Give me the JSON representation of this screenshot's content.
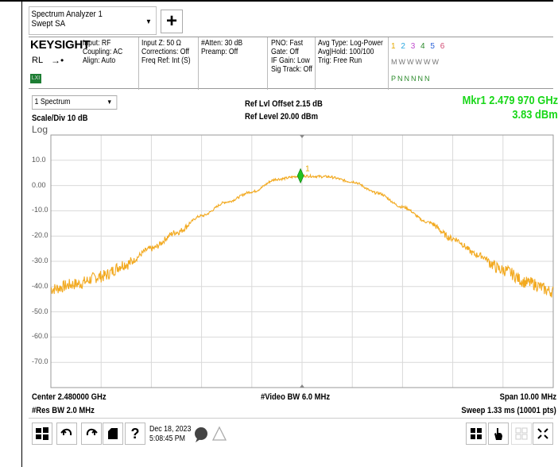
{
  "screen": {
    "selector_line1": "Spectrum Analyzer 1",
    "selector_line2": "Swept SA",
    "add_label": "+"
  },
  "settings": {
    "logo": "KEYSIGHT",
    "rl": "RL",
    "input": [
      "Input: RF",
      "Coupling: AC",
      "Align: Auto"
    ],
    "input_z": [
      "Input Z: 50 Ω",
      "Corrections: Off",
      "Freq Ref: Int (S)"
    ],
    "atten": [
      "#Atten: 30 dB",
      "Preamp: Off"
    ],
    "pno": [
      "PNO: Fast",
      "Gate: Off",
      "IF Gain: Low",
      "Sig Track: Off"
    ],
    "avg": [
      "Avg Type: Log-Power",
      "Avg|Hold: 100/100",
      "Trig: Free Run"
    ],
    "trace_numbers": [
      "1",
      "2",
      "3",
      "4",
      "5",
      "6"
    ],
    "trace_types": "MWWWWW",
    "trace_detectors": "PNNNNN"
  },
  "window": {
    "selector": "1 Spectrum",
    "scale_div": "Scale/Div 10 dB",
    "log": "Log",
    "ref_offset": "Ref Lvl Offset 2.15 dB",
    "ref_level": "Ref Level 20.00 dBm",
    "marker_freq": "Mkr1  2.479 970 GHz",
    "marker_amp": "3.83 dBm",
    "marker_label": "1"
  },
  "chart_data": {
    "type": "line",
    "y_tick_labels": [
      "10.0",
      "0.00",
      "-10.0",
      "-20.0",
      "-30.0",
      "-40.0",
      "-50.0",
      "-60.0",
      "-70.0"
    ],
    "ylim": [
      -80,
      20
    ],
    "xlim_ghz": [
      2.475,
      2.485
    ],
    "grid": true,
    "series": [
      {
        "color": "#f2a91f",
        "x": [
          2.475,
          2.4755,
          2.476,
          2.4765,
          2.477,
          2.4775,
          2.478,
          2.4785,
          2.479,
          2.4795,
          2.48,
          2.4805,
          2.481,
          2.4815,
          2.482,
          2.4825,
          2.483,
          2.4835,
          2.484,
          2.4845,
          2.485
        ],
        "values": [
          -41,
          -39,
          -36,
          -31,
          -25,
          -18.5,
          -12,
          -6.5,
          -2.5,
          2.5,
          3.8,
          3.5,
          1.5,
          -3,
          -8.5,
          -14.5,
          -21,
          -27.5,
          -33.5,
          -38.5,
          -42
        ]
      }
    ],
    "marker": {
      "x": 2.47997,
      "y": 3.83
    }
  },
  "footer": {
    "center": "Center 2.480000 GHz",
    "res_bw": "#Res BW 2.0 MHz",
    "video_bw": "#Video BW 6.0 MHz",
    "span": "Span 10.00 MHz",
    "sweep": "Sweep 1.33 ms (10001 pts)"
  },
  "taskbar": {
    "date": "Dec 18, 2023",
    "time": "5:08:45 PM"
  }
}
